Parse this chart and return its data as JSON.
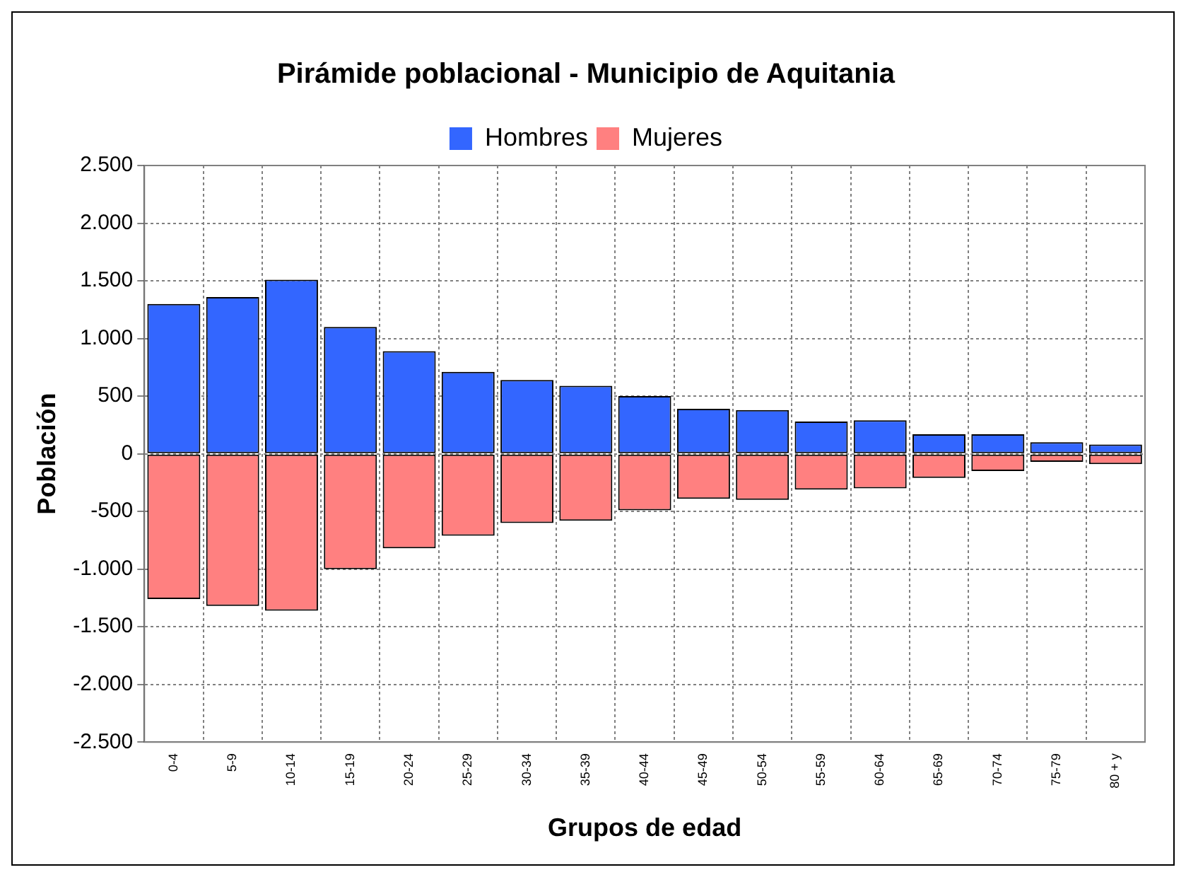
{
  "chart_data": {
    "type": "bar",
    "title": "Pirámide poblacional - Municipio de Aquitania",
    "xlabel": "Grupos de edad",
    "ylabel": "Población",
    "categories": [
      "0-4",
      "5-9",
      "10-14",
      "15-19",
      "20-24",
      "25-29",
      "30-34",
      "35-39",
      "40-44",
      "45-49",
      "50-54",
      "55-59",
      "60-64",
      "65-69",
      "70-74",
      "75-79",
      "80 + y"
    ],
    "series": [
      {
        "name": "Hombres",
        "color": "#3366ff",
        "values": [
          1300,
          1360,
          1510,
          1100,
          890,
          710,
          640,
          590,
          500,
          390,
          380,
          280,
          290,
          170,
          170,
          100,
          80
        ]
      },
      {
        "name": "Mujeres",
        "color": "#ff8080",
        "values": [
          -1260,
          -1320,
          -1360,
          -1000,
          -820,
          -710,
          -600,
          -580,
          -490,
          -390,
          -400,
          -310,
          -300,
          -210,
          -150,
          -70,
          -90
        ]
      }
    ],
    "stacked": true,
    "ylim": [
      -2500,
      2500
    ],
    "yticks": [
      {
        "value": -2500,
        "label": "-2.500"
      },
      {
        "value": -2000,
        "label": "-2.000"
      },
      {
        "value": -1500,
        "label": "-1.500"
      },
      {
        "value": -1000,
        "label": "-1.000"
      },
      {
        "value": -500,
        "label": "-500"
      },
      0,
      500,
      {
        "value": 1000,
        "label": "1.000"
      },
      {
        "value": 1500,
        "label": "1.500"
      },
      {
        "value": 2000,
        "label": "2.000"
      },
      {
        "value": 2500,
        "label": "2.500"
      }
    ],
    "grid": true,
    "legend": "top"
  }
}
